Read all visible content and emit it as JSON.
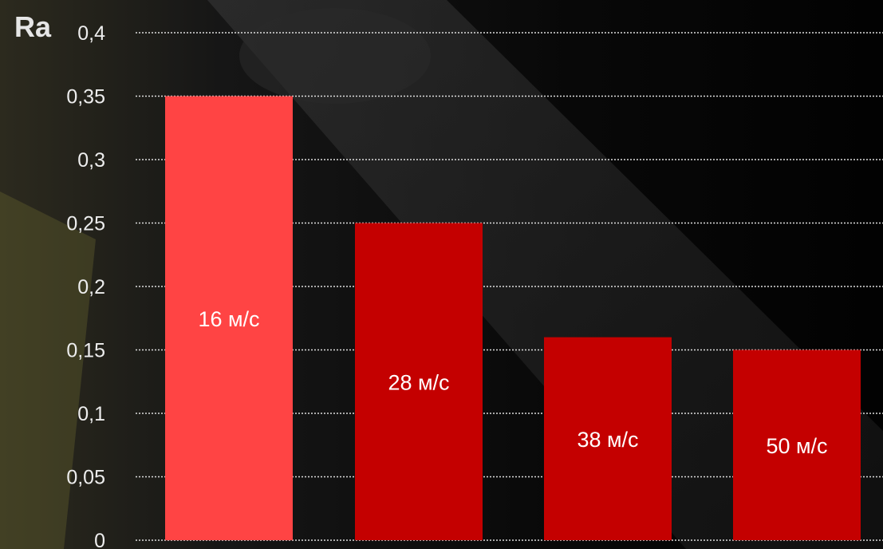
{
  "chart_data": {
    "type": "bar",
    "ylabel": "Ra",
    "ylim": [
      0,
      0.4
    ],
    "ytick_step": 0.05,
    "y_ticks": [
      "0",
      "0,05",
      "0,1",
      "0,15",
      "0,2",
      "0,25",
      "0,3",
      "0,35",
      "0,4"
    ],
    "grid": true,
    "categories": [
      "16 м/с",
      "28 м/с",
      "38 м/с",
      "50 м/с"
    ],
    "values": [
      0.35,
      0.25,
      0.16,
      0.15
    ],
    "colors": [
      "#ff4444",
      "#c40000",
      "#c40000",
      "#c40000"
    ],
    "grid_color": "#dddddd"
  }
}
